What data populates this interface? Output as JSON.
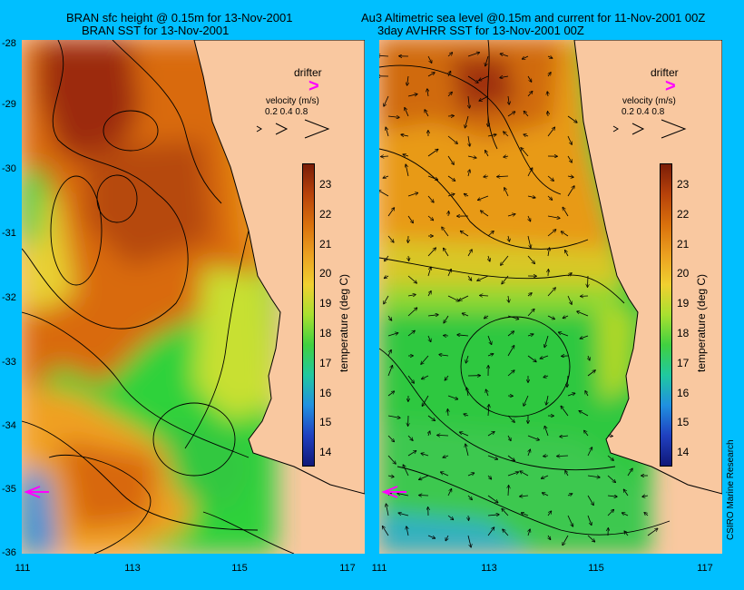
{
  "left": {
    "title_line1": "BRAN sfc height @ 0.15m for 13-Nov-2001",
    "title_line2": "BRAN SST for 13-Nov-2001"
  },
  "right": {
    "title_line1": "Au3 Altimetric sea level  @0.15m and current for 11-Nov-2001 00Z",
    "title_line2": "3day AVHRR SST for 13-Nov-2001 00Z"
  },
  "y_ticks": [
    "-28",
    "-29",
    "-30",
    "-31",
    "-32",
    "-33",
    "-34",
    "-35",
    "-36"
  ],
  "x_ticks": [
    "111",
    "113",
    "115",
    "117"
  ],
  "colorbar": {
    "label": "temperature (deg C)",
    "ticks": [
      "23",
      "22",
      "21",
      "20",
      "19",
      "18",
      "17",
      "16",
      "15",
      "14"
    ],
    "range": [
      13.5,
      23.5
    ]
  },
  "legend": {
    "drifter_label": "drifter",
    "velocity_label": "velocity (m/s)",
    "velocity_ticks": "0.2 0.4 0.8"
  },
  "credit": "CSIRO Marine Research",
  "colors": {
    "background": "#00bfff",
    "land": "#f9c8a0",
    "drifter": "#ff00ff"
  }
}
